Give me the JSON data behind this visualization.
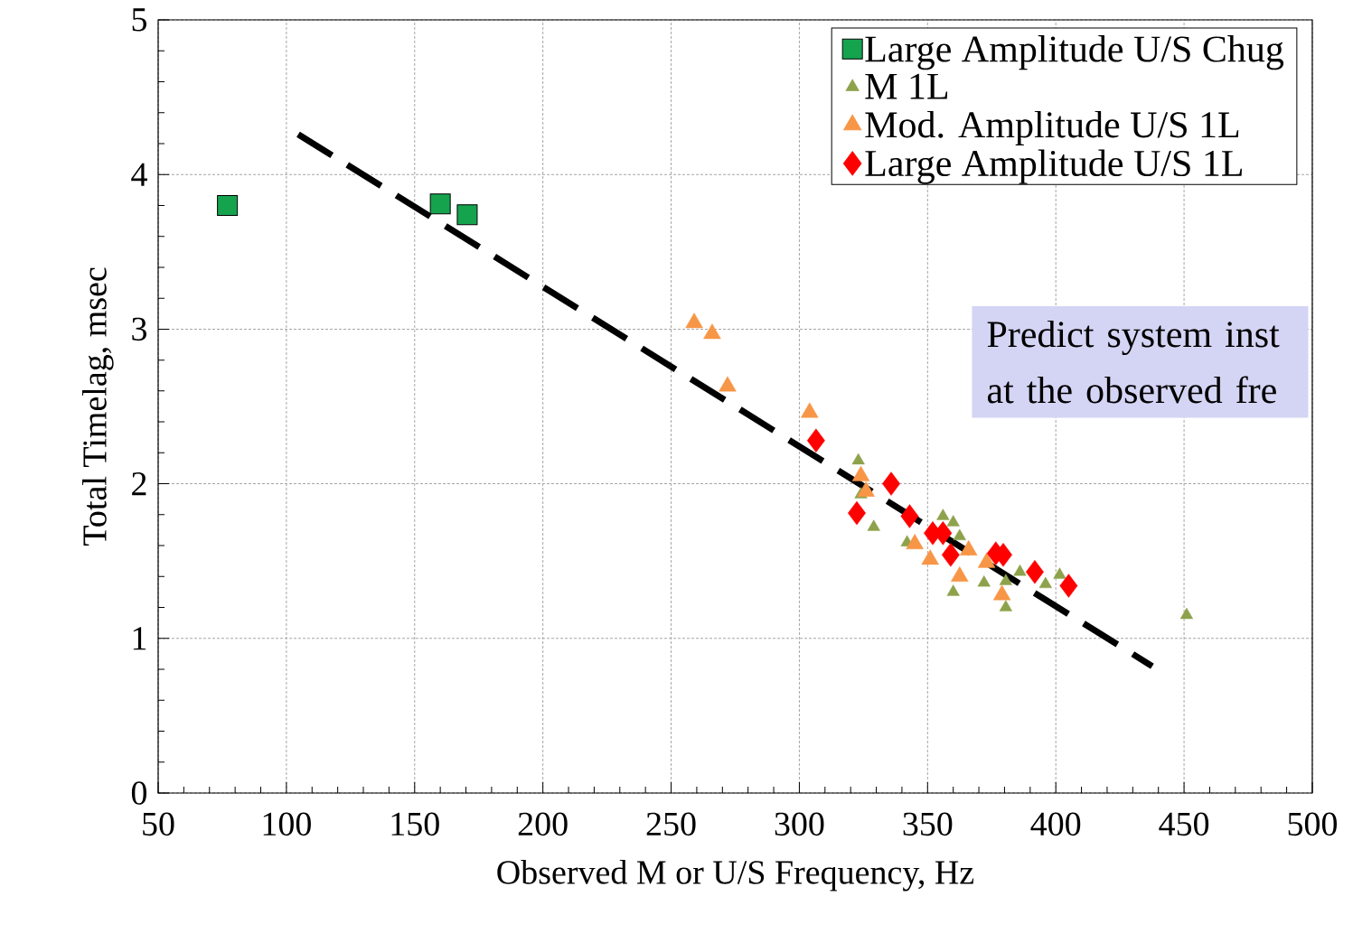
{
  "chart_data": {
    "type": "scatter",
    "xlabel": "Observed M or U/S Frequency, Hz",
    "ylabel": "Total Timelag, msec",
    "xlim": [
      50,
      500
    ],
    "ylim": [
      0,
      5
    ],
    "xticks": [
      50,
      100,
      150,
      200,
      250,
      300,
      350,
      400,
      450,
      500
    ],
    "yticks": [
      0,
      1,
      2,
      3,
      4,
      5
    ],
    "grid": true,
    "legend": "top right",
    "annotations": [
      "Predict system inst at the observed fre"
    ],
    "series": [
      {
        "name": "Large Amplitude U/S Chug",
        "color": "#16a34e",
        "marker": "square",
        "x": [
          77,
          160,
          170.5
        ],
        "values": [
          3.8,
          3.81,
          3.74
        ]
      },
      {
        "name": "M 1L",
        "color": "#8da24b",
        "marker": "triangle",
        "x": [
          323,
          324,
          329,
          342,
          356,
          360,
          362.5,
          360,
          372,
          380.5,
          380.5,
          386,
          396,
          401.5,
          451
        ],
        "values": [
          2.15,
          1.93,
          1.72,
          1.62,
          1.79,
          1.75,
          1.66,
          1.3,
          1.36,
          1.37,
          1.2,
          1.43,
          1.35,
          1.41,
          1.15
        ]
      },
      {
        "name": "Mod. Amplitude U/S 1L",
        "color": "#f79646",
        "marker": "triangle",
        "x": [
          259,
          266,
          272,
          304,
          324,
          326,
          345,
          351,
          362.5,
          366,
          373,
          379
        ],
        "values": [
          3.04,
          2.97,
          2.63,
          2.46,
          2.05,
          1.95,
          1.61,
          1.51,
          1.4,
          1.57,
          1.49,
          1.28
        ]
      },
      {
        "name": "Large Amplitude U/S 1L",
        "color": "#ff0000",
        "marker": "diamond",
        "x": [
          306.5,
          322.4,
          335.8,
          343,
          352,
          356,
          359,
          376.6,
          379.5,
          391.8,
          405
        ],
        "values": [
          2.28,
          1.81,
          2.0,
          1.79,
          1.68,
          1.68,
          1.54,
          1.55,
          1.54,
          1.43,
          1.34
        ]
      },
      {
        "type": "line",
        "color": "#000000",
        "line_style": "dashed",
        "marker": "none",
        "x": [
          104.6,
          437.6
        ],
        "values": [
          4.26,
          0.82
        ]
      }
    ]
  }
}
